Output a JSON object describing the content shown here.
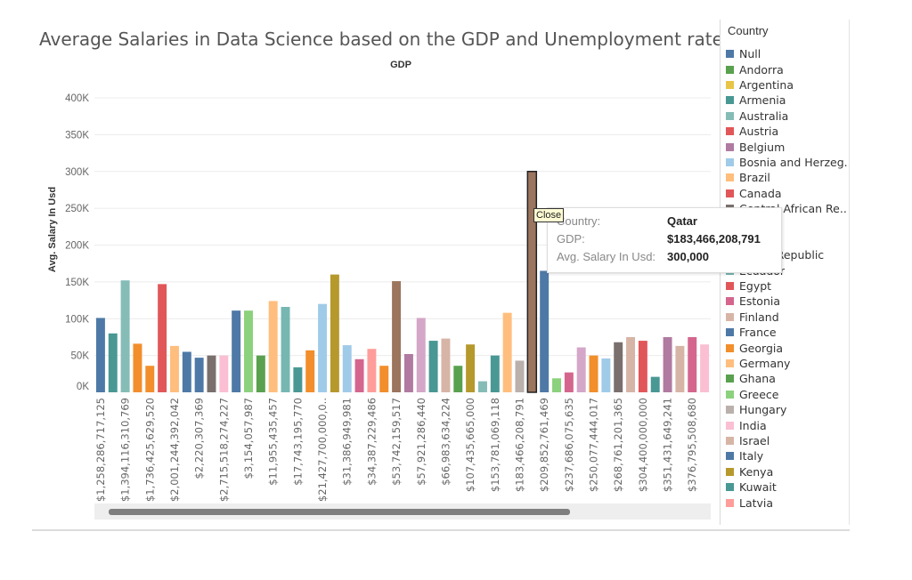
{
  "title": "Average Salaries in Data Science based on the GDP and Unemployment rate",
  "legend": {
    "title": "Country",
    "items": [
      {
        "name": "Null",
        "color": "#4e79a7"
      },
      {
        "name": "Andorra",
        "color": "#59a14f"
      },
      {
        "name": "Argentina",
        "color": "#e8c547"
      },
      {
        "name": "Armenia",
        "color": "#499894"
      },
      {
        "name": "Australia",
        "color": "#86bcb6"
      },
      {
        "name": "Austria",
        "color": "#e15759"
      },
      {
        "name": "Belgium",
        "color": "#b07aa1"
      },
      {
        "name": "Bosnia and Herzeg..",
        "color": "#a0cbe8"
      },
      {
        "name": "Brazil",
        "color": "#ffbe7d"
      },
      {
        "name": "Canada",
        "color": "#e15759"
      },
      {
        "name": "Central African Re..",
        "color": "#79706e"
      },
      {
        "name": "",
        "color": "#ffffff"
      },
      {
        "name": "",
        "color": "#ffffff"
      },
      {
        "name": "Czech Republic",
        "color": "#f28e2b"
      },
      {
        "name": "Ecuador",
        "color": "#76b7b2"
      },
      {
        "name": "Egypt",
        "color": "#e15759"
      },
      {
        "name": "Estonia",
        "color": "#d4668e"
      },
      {
        "name": "Finland",
        "color": "#d7b5a6"
      },
      {
        "name": "France",
        "color": "#4e79a7"
      },
      {
        "name": "Georgia",
        "color": "#f28e2b"
      },
      {
        "name": "Germany",
        "color": "#ffbe7d"
      },
      {
        "name": "Ghana",
        "color": "#59a14f"
      },
      {
        "name": "Greece",
        "color": "#8cd17d"
      },
      {
        "name": "Hungary",
        "color": "#bab0ac"
      },
      {
        "name": "India",
        "color": "#fabfd2"
      },
      {
        "name": "Israel",
        "color": "#d7b5a6"
      },
      {
        "name": "Italy",
        "color": "#4e79a7"
      },
      {
        "name": "Kenya",
        "color": "#b6992d"
      },
      {
        "name": "Kuwait",
        "color": "#499894"
      },
      {
        "name": "Latvia",
        "color": "#ff9d9a"
      }
    ]
  },
  "tooltip": {
    "close_label": "Close",
    "country_label": "Country:",
    "country_value": "Qatar",
    "gdp_label": "GDP:",
    "gdp_value": "$183,466,208,791",
    "salary_label": "Avg. Salary In Usd:",
    "salary_value": "300,000"
  },
  "chart_data": {
    "type": "bar",
    "title": "Average Salaries in Data Science based on the GDP and Unemployment rate",
    "xlabel": "GDP",
    "ylabel": "Avg. Salary In Usd",
    "ylim": [
      0,
      400000
    ],
    "yticks": [
      {
        "value": 0,
        "label": "0K"
      },
      {
        "value": 50000,
        "label": "50K"
      },
      {
        "value": 100000,
        "label": "100K"
      },
      {
        "value": 150000,
        "label": "150K"
      },
      {
        "value": 200000,
        "label": "200K"
      },
      {
        "value": 250000,
        "label": "250K"
      },
      {
        "value": 300000,
        "label": "300K"
      },
      {
        "value": 350000,
        "label": "350K"
      },
      {
        "value": 400000,
        "label": "400K"
      }
    ],
    "grid": true,
    "legend_position": "right",
    "xtick_labels": [
      "$1,258,286,717,125",
      "$1,394,116,310,769",
      "$1,736,425,629,520",
      "$2,001,244,392,042",
      "$2,220,307,369",
      "$2,715,518,274,227",
      "$3,154,057,987",
      "$11,955,435,457",
      "$17,743,195,770",
      "$21,427,700,000,0..",
      "$31,386,949,981",
      "$34,387,229,486",
      "$53,742,159,517",
      "$57,921,286,440",
      "$66,983,634,224",
      "$107,435,665,000",
      "$153,781,069,118",
      "$183,466,208,791",
      "$209,852,761,469",
      "$237,686,075,635",
      "$250,077,444,017",
      "$268,761,201,365",
      "$304,400,000,000",
      "$351,431,649,241",
      "$376,795,508,680"
    ],
    "values": [
      101000,
      80000,
      152000,
      66000,
      36000,
      147000,
      63000,
      55000,
      47000,
      50000,
      50000,
      111000,
      111000,
      50000,
      124000,
      116000,
      34000,
      57000,
      120000,
      160000,
      64000,
      45000,
      59000,
      36000,
      151000,
      52000,
      101000,
      70000,
      73000,
      36000,
      65000,
      15000,
      50000,
      108000,
      43000,
      300000,
      165000,
      19000,
      27000,
      61000,
      50000,
      46000,
      68000,
      75000,
      70000,
      21000,
      75000,
      63000,
      75000,
      65000
    ],
    "colors": [
      "#4e79a7",
      "#499894",
      "#86bcb6",
      "#f28e2b",
      "#f28e2b",
      "#e15759",
      "#ffbe7d",
      "#4e79a7",
      "#4e79a7",
      "#79706e",
      "#fabfd2",
      "#4e79a7",
      "#8cd17d",
      "#59a14f",
      "#ffbe7d",
      "#76b7b2",
      "#499894",
      "#f28e2b",
      "#a0cbe8",
      "#b6992d",
      "#a0cbe8",
      "#d4668e",
      "#ff9d9a",
      "#f28e2b",
      "#9c755f",
      "#b07aa1",
      "#d4a6c8",
      "#499894",
      "#d7b5a6",
      "#59a14f",
      "#b6992d",
      "#86bcb6",
      "#499894",
      "#ffbe7d",
      "#bab0ac",
      "#9c755f",
      "#4e79a7",
      "#8cd17d",
      "#d4668e",
      "#d4a6c8",
      "#f28e2b",
      "#a0cbe8",
      "#79706e",
      "#d7b5a6",
      "#e15759",
      "#499894",
      "#b07aa1",
      "#d7b5a6",
      "#d4668e",
      "#fabfd2"
    ],
    "highlighted_index": 35
  }
}
